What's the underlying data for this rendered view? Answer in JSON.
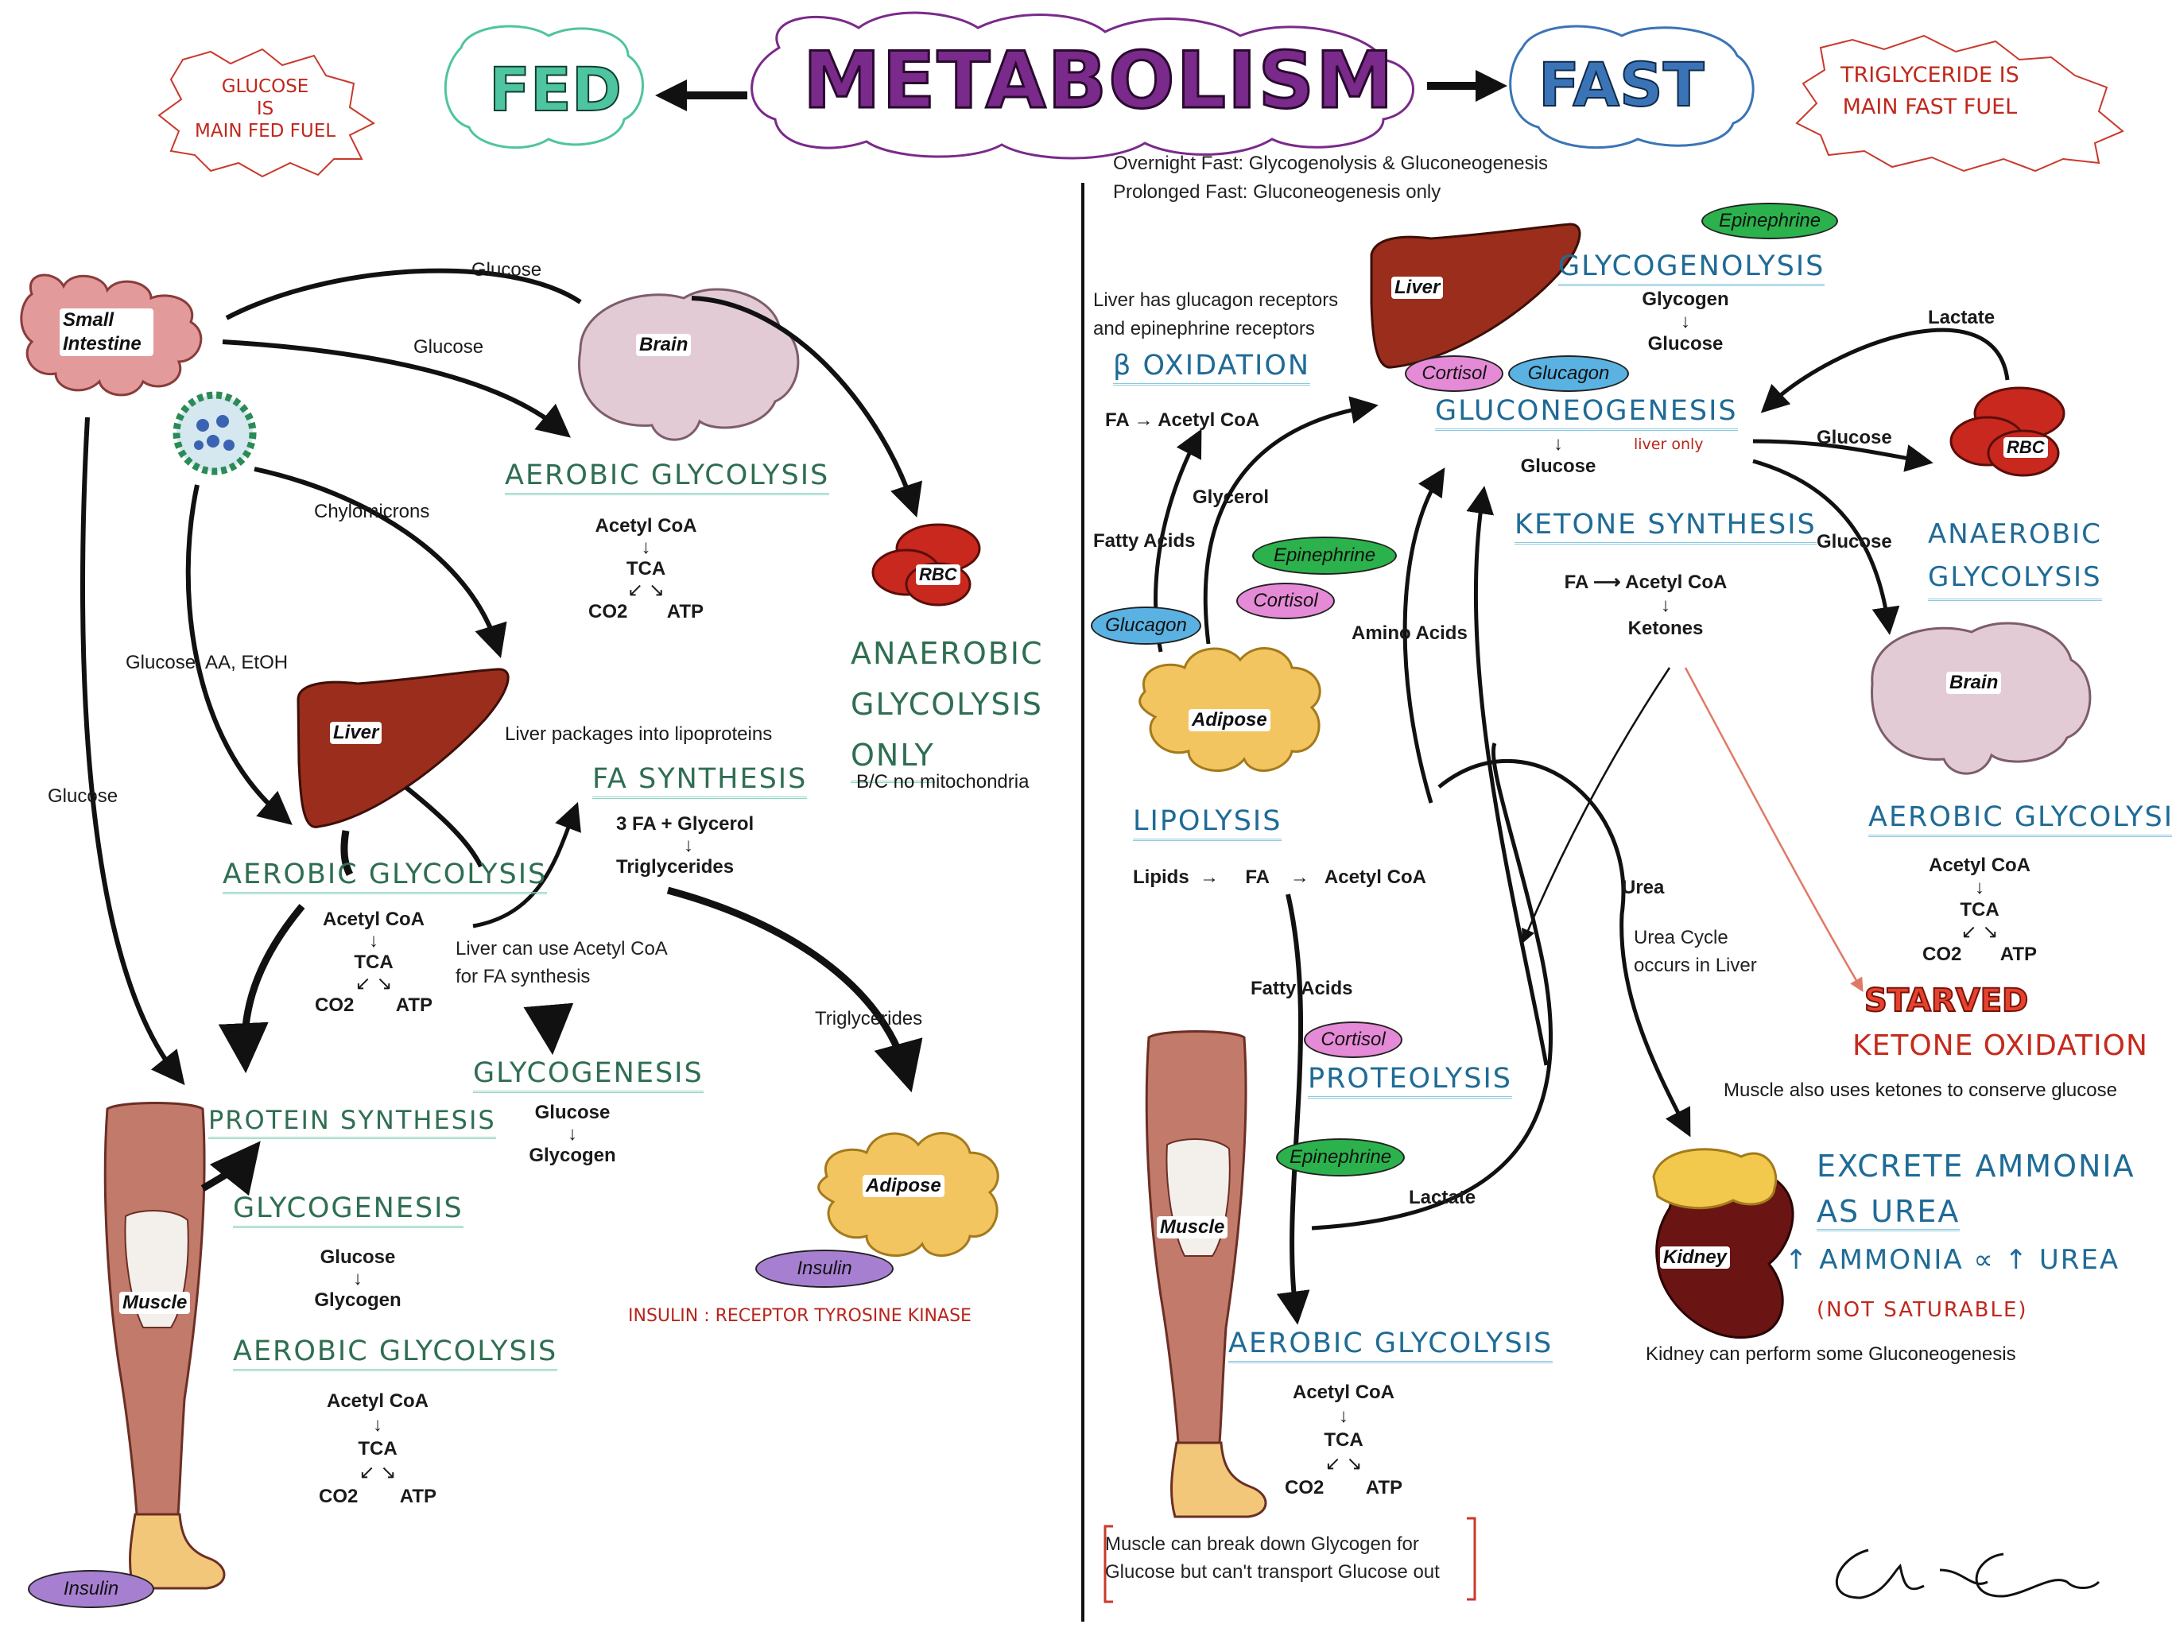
{
  "title": "METABOLISM",
  "fed_label": "FED",
  "fast_label": "FAST",
  "fed_note": [
    "GLUCOSE",
    "IS",
    "MAIN FED FUEL"
  ],
  "fast_note": [
    "TRIGLYCERIDE IS",
    "MAIN FAST FUEL"
  ],
  "fast_subtitle": [
    "Overnight Fast: Glycogenolysis & Gluconeogenesis",
    "Prolonged Fast: Gluconeogenesis only"
  ],
  "colors": {
    "title_fill": "#7a2a8a",
    "fed_fill": "#4fc4a0",
    "fast_fill": "#3a74b6",
    "liver": "#9a2d1c",
    "rbc": "#c8281e",
    "brain": "#e3cbd6",
    "adipose": "#f3c561",
    "intestine": "#e39a9a",
    "muscle": "#b65b4b",
    "kidney": "#6a1414"
  },
  "fed": {
    "organs": {
      "small_intestine": "Small Intestine",
      "brain": "Brain",
      "rbc": "RBC",
      "liver": "Liver",
      "adipose": "Adipose",
      "muscle": "Muscle"
    },
    "arrows": {
      "glucose_top": "Glucose",
      "glucose_mid": "Glucose",
      "chylomicrons": "Chylomicrons",
      "glucose_aa_etoh": "Glucose, AA, EtOH",
      "glucose_left": "Glucose",
      "triglycerides": "Triglycerides"
    },
    "brain_aerobic": {
      "heading": "AEROBIC GLYCOLYSIS",
      "acetyl": "Acetyl CoA",
      "arrow": "↓",
      "tca": "TCA",
      "split": "↙   ↘",
      "co2": "CO2",
      "atp": "ATP"
    },
    "rbc_anaerobic": {
      "heading": [
        "ANAEROBIC",
        "GLYCOLYSIS",
        "ONLY"
      ],
      "note": "B/C no mitochondria"
    },
    "liver_note": "Liver packages into lipoproteins",
    "fa_synthesis": {
      "heading": "FA SYNTHESIS",
      "line1": "3 FA   +  Glycerol",
      "arrow": "↓",
      "line2": "Triglycerides"
    },
    "liver_aerobic": {
      "heading": "AEROBIC GLYCOLYSIS",
      "acetyl": "Acetyl CoA",
      "arrow": "↓",
      "tca": "TCA",
      "split": "↙   ↘",
      "co2": "CO2",
      "atp": "ATP"
    },
    "liver_acetyl_note": [
      "Liver can use Acetyl CoA",
      "for FA synthesis"
    ],
    "liver_glycogenesis": {
      "heading": "GLYCOGENESIS",
      "line1": "Glucose",
      "arrow": "↓",
      "line2": "Glycogen"
    },
    "muscle_protein": "PROTEIN SYNTHESIS",
    "muscle_glycogenesis": {
      "heading": "GLYCOGENESIS",
      "line1": "Glucose",
      "arrow": "↓",
      "line2": "Glycogen"
    },
    "muscle_aerobic": {
      "heading": "AEROBIC GLYCOLYSIS",
      "acetyl": "Acetyl CoA",
      "arrow": "↓",
      "tca": "TCA",
      "split": "↙   ↘",
      "co2": "CO2",
      "atp": "ATP"
    },
    "hormones": {
      "insulin_adipose": "Insulin",
      "insulin_muscle": "Insulin"
    },
    "insulin_note": "INSULIN : RECEPTOR TYROSINE KINASE"
  },
  "fast": {
    "organs": {
      "liver": "Liver",
      "rbc": "RBC",
      "brain": "Brain",
      "adipose": "Adipose",
      "muscle": "Muscle",
      "kidney": "Kidney"
    },
    "hormones": {
      "epi_top": "Epinephrine",
      "cortisol_liver": "Cortisol",
      "glucagon_liver": "Glucagon",
      "epi_adipose": "Epinephrine",
      "cortisol_adipose": "Cortisol",
      "glucagon_adipose": "Glucagon",
      "cortisol_muscle": "Cortisol",
      "epi_muscle": "Epinephrine"
    },
    "receptor_note": [
      "Liver has glucagon receptors",
      "and epinephrine receptors"
    ],
    "beta_oxidation": {
      "heading": "β OXIDATION",
      "line": "FA   →   Acetyl CoA"
    },
    "glycogenolysis": {
      "heading": "GLYCOGENOLYSIS",
      "line1": "Glycogen",
      "arrow": "↓",
      "line2": "Glucose"
    },
    "gluconeogenesis": {
      "heading": "GLUCONEOGENESIS",
      "arrow": "↓",
      "line": "Glucose",
      "tag": "liver only"
    },
    "arrows": {
      "lactate_top": "Lactate",
      "glucose_rbc": "Glucose",
      "glucose_brain": "Glucose",
      "glycerol": "Glycerol",
      "fatty_acids_top": "Fatty Acids",
      "amino_acids": "Amino Acids",
      "urea": "Urea",
      "fatty_acids_mid": "Fatty Acids",
      "lactate_bottom": "Lactate"
    },
    "rbc_anaerobic": [
      "ANAEROBIC",
      "GLYCOLYSIS"
    ],
    "ketone_synthesis": {
      "heading": "KETONE SYNTHESIS",
      "line1": "FA  ⟶  Acetyl CoA",
      "arrow": "↓",
      "line2": "Ketones"
    },
    "brain_aerobic": {
      "heading": "AEROBIC GLYCOLYSIS",
      "acetyl": "Acetyl CoA",
      "arrow": "↓",
      "tca": "TCA",
      "split": "↙   ↘",
      "co2": "CO2",
      "atp": "ATP"
    },
    "starved": "STARVED",
    "ketone_oxidation": "KETONE OXIDATION",
    "muscle_ketone_note": "Muscle also uses ketones to conserve glucose",
    "lipolysis": {
      "heading": "LIPOLYSIS",
      "line": "Lipids  →     FA    →   Acetyl CoA"
    },
    "urea_note": [
      "Urea Cycle",
      "occurs in Liver"
    ],
    "proteolysis": "PROTEOLYSIS",
    "excrete": {
      "line1": "EXCRETE AMMONIA",
      "line2": "AS UREA",
      "line3": "↑ AMMONIA ∝ ↑ UREA",
      "line4": "(NOT SATURABLE)"
    },
    "kidney_note": "Kidney can perform some Gluconeogenesis",
    "muscle_aerobic": {
      "heading": "AEROBIC GLYCOLYSIS",
      "acetyl": "Acetyl CoA",
      "arrow": "↓",
      "tca": "TCA",
      "split": "↙   ↘",
      "co2": "CO2",
      "atp": "ATP"
    },
    "muscle_glycogen_note": [
      "Muscle can break down Glycogen for",
      "Glucose but can't transport Glucose out"
    ]
  }
}
